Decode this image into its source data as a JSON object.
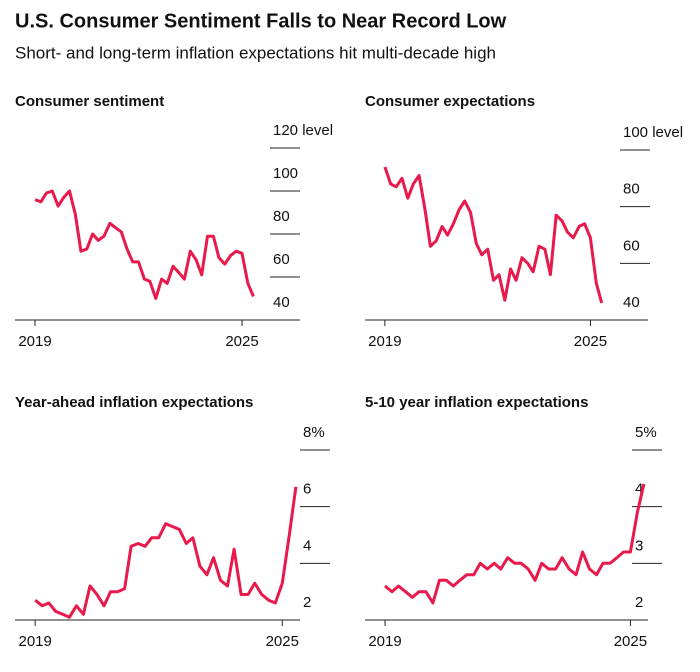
{
  "title": "U.S. Consumer Sentiment Falls to Near Record Low",
  "subtitle": "Short- and long-term inflation expectations hit multi-decade high",
  "chart_data": [
    {
      "type": "line",
      "title": "Consumer sentiment",
      "color": "#e8194b",
      "x": [
        2019,
        2019.17,
        2019.33,
        2019.5,
        2019.67,
        2019.83,
        2020,
        2020.17,
        2020.33,
        2020.5,
        2020.67,
        2020.83,
        2021,
        2021.17,
        2021.33,
        2021.5,
        2021.67,
        2021.83,
        2022,
        2022.17,
        2022.33,
        2022.5,
        2022.67,
        2022.83,
        2023,
        2023.17,
        2023.33,
        2023.5,
        2023.67,
        2023.83,
        2024,
        2024.17,
        2024.33,
        2024.5,
        2024.67,
        2024.83,
        2025,
        2025.17,
        2025.33
      ],
      "values": [
        96,
        95,
        99,
        100,
        93,
        97,
        100,
        89,
        72,
        73,
        80,
        77,
        79,
        85,
        83,
        81,
        73,
        67,
        67,
        59,
        58,
        50,
        59,
        57,
        65,
        62,
        59,
        72,
        68,
        61,
        79,
        79,
        69,
        66,
        70,
        72,
        71,
        57,
        51
      ],
      "xlim": [
        2018.42,
        2026.68
      ],
      "xticks": [
        2019,
        2025
      ],
      "ylim": [
        40,
        120
      ],
      "yticks": [
        {
          "value": 120,
          "label": "120 level"
        },
        100,
        80,
        60,
        40
      ]
    },
    {
      "type": "line",
      "title": "Consumer expectations",
      "color": "#e8194b",
      "x": [
        2019,
        2019.17,
        2019.33,
        2019.5,
        2019.67,
        2019.83,
        2020,
        2020.17,
        2020.33,
        2020.5,
        2020.67,
        2020.83,
        2021,
        2021.17,
        2021.33,
        2021.5,
        2021.67,
        2021.83,
        2022,
        2022.17,
        2022.33,
        2022.5,
        2022.67,
        2022.83,
        2023,
        2023.17,
        2023.33,
        2023.5,
        2023.67,
        2023.83,
        2024,
        2024.17,
        2024.33,
        2024.5,
        2024.67,
        2024.83,
        2025,
        2025.17,
        2025.33
      ],
      "values": [
        94,
        88,
        87,
        90,
        83,
        88,
        91,
        79,
        66,
        68,
        73,
        70,
        74,
        79,
        82,
        78,
        67,
        63,
        65,
        54,
        56,
        47,
        58,
        54,
        62,
        60,
        57,
        66,
        65,
        56,
        77,
        75,
        71,
        69,
        73,
        74,
        69,
        53,
        46
      ],
      "xlim": [
        2018.42,
        2026.68
      ],
      "xticks": [
        2019,
        2025
      ],
      "ylim": [
        40,
        100
      ],
      "yticks": [
        {
          "value": 100,
          "label": "100 level"
        },
        80,
        60,
        40
      ]
    },
    {
      "type": "line",
      "title": "Year-ahead inflation expectations",
      "color": "#e8194b",
      "x": [
        2019,
        2019.17,
        2019.33,
        2019.5,
        2019.67,
        2019.83,
        2020,
        2020.17,
        2020.33,
        2020.5,
        2020.67,
        2020.83,
        2021,
        2021.17,
        2021.33,
        2021.5,
        2021.67,
        2021.83,
        2022,
        2022.17,
        2022.33,
        2022.5,
        2022.67,
        2022.83,
        2023,
        2023.17,
        2023.33,
        2023.5,
        2023.67,
        2023.83,
        2024,
        2024.17,
        2024.33,
        2024.5,
        2024.67,
        2024.83,
        2025,
        2025.17,
        2025.33
      ],
      "values": [
        2.7,
        2.5,
        2.6,
        2.3,
        2.2,
        2.1,
        2.5,
        2.2,
        3.2,
        2.9,
        2.5,
        3.0,
        3.0,
        3.1,
        4.6,
        4.7,
        4.6,
        4.9,
        4.9,
        5.4,
        5.3,
        5.2,
        4.7,
        4.9,
        3.9,
        3.6,
        4.2,
        3.4,
        3.2,
        4.5,
        2.9,
        2.9,
        3.3,
        2.9,
        2.7,
        2.6,
        3.3,
        5.0,
        6.7
      ],
      "xlim": [
        2018.51,
        2025.43
      ],
      "xticks": [
        2019,
        2025
      ],
      "ylim": [
        2,
        8
      ],
      "yticks": [
        {
          "value": 8,
          "label": "8%"
        },
        6,
        4,
        2
      ]
    },
    {
      "type": "line",
      "title": "5-10 year inflation expectations",
      "color": "#e8194b",
      "x": [
        2019,
        2019.17,
        2019.33,
        2019.5,
        2019.67,
        2019.83,
        2020,
        2020.17,
        2020.33,
        2020.5,
        2020.67,
        2020.83,
        2021,
        2021.17,
        2021.33,
        2021.5,
        2021.67,
        2021.83,
        2022,
        2022.17,
        2022.33,
        2022.5,
        2022.67,
        2022.83,
        2023,
        2023.17,
        2023.33,
        2023.5,
        2023.67,
        2023.83,
        2024,
        2024.17,
        2024.33,
        2024.5,
        2024.67,
        2024.83,
        2025,
        2025.17,
        2025.33
      ],
      "values": [
        2.6,
        2.5,
        2.6,
        2.5,
        2.4,
        2.5,
        2.5,
        2.3,
        2.7,
        2.7,
        2.6,
        2.7,
        2.8,
        2.8,
        3.0,
        2.9,
        3.0,
        2.9,
        3.1,
        3.0,
        3.0,
        2.9,
        2.7,
        3.0,
        2.9,
        2.9,
        3.1,
        2.9,
        2.8,
        3.2,
        2.9,
        2.8,
        3.0,
        3.0,
        3.1,
        3.2,
        3.2,
        3.9,
        4.4
      ],
      "xlim": [
        2018.51,
        2025.43
      ],
      "xticks": [
        2019,
        2025
      ],
      "ylim": [
        2,
        5
      ],
      "yticks": [
        {
          "value": 5,
          "label": "5%"
        },
        4,
        3,
        2
      ]
    }
  ]
}
